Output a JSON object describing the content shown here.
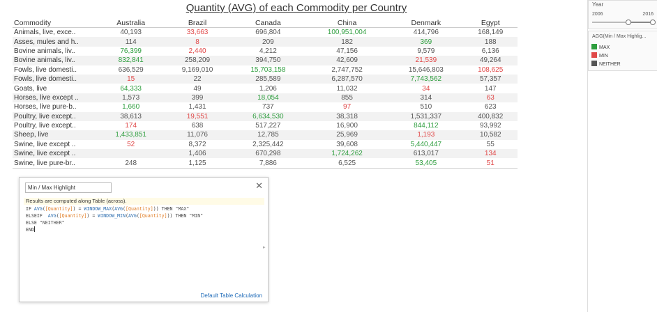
{
  "title": "Quantity (AVG) of each Commodity per Country",
  "table": {
    "row_header": "Commodity",
    "columns": [
      "Australia",
      "Brazil",
      "Canada",
      "China",
      "Denmark",
      "Egypt"
    ],
    "rows": [
      {
        "label": "Animals, live, exce..",
        "values": [
          "40,193",
          "33,663",
          "696,804",
          "100,951,004",
          "414,796",
          "168,149"
        ],
        "status": [
          "neither",
          "min",
          "neither",
          "max",
          "neither",
          "neither"
        ]
      },
      {
        "label": "Asses, mules and h..",
        "values": [
          "114",
          "8",
          "209",
          "182",
          "369",
          "188"
        ],
        "status": [
          "neither",
          "min",
          "neither",
          "neither",
          "max",
          "neither"
        ]
      },
      {
        "label": "Bovine animals, liv..",
        "values": [
          "76,399",
          "2,440",
          "4,212",
          "47,156",
          "9,579",
          "6,136"
        ],
        "status": [
          "max",
          "min",
          "neither",
          "neither",
          "neither",
          "neither"
        ]
      },
      {
        "label": "Bovine animals, liv..",
        "values": [
          "832,841",
          "258,209",
          "394,750",
          "42,609",
          "21,539",
          "49,264"
        ],
        "status": [
          "max",
          "neither",
          "neither",
          "neither",
          "min",
          "neither"
        ]
      },
      {
        "label": "Fowls, live domesti..",
        "values": [
          "636,529",
          "9,169,010",
          "15,703,158",
          "2,747,752",
          "15,646,803",
          "108,625"
        ],
        "status": [
          "neither",
          "neither",
          "max",
          "neither",
          "neither",
          "min"
        ]
      },
      {
        "label": "Fowls, live domesti..",
        "values": [
          "15",
          "22",
          "285,589",
          "6,287,570",
          "7,743,562",
          "57,357"
        ],
        "status": [
          "min",
          "neither",
          "neither",
          "neither",
          "max",
          "neither"
        ]
      },
      {
        "label": "Goats, live",
        "values": [
          "64,333",
          "49",
          "1,206",
          "11,032",
          "34",
          "147"
        ],
        "status": [
          "max",
          "neither",
          "neither",
          "neither",
          "min",
          "neither"
        ]
      },
      {
        "label": "Horses, live except ..",
        "values": [
          "1,573",
          "399",
          "18,054",
          "855",
          "314",
          "63"
        ],
        "status": [
          "neither",
          "neither",
          "max",
          "neither",
          "neither",
          "min"
        ]
      },
      {
        "label": "Horses, live pure-b..",
        "values": [
          "1,660",
          "1,431",
          "737",
          "97",
          "510",
          "623"
        ],
        "status": [
          "max",
          "neither",
          "neither",
          "min",
          "neither",
          "neither"
        ]
      },
      {
        "label": "Poultry, live except..",
        "values": [
          "38,613",
          "19,551",
          "6,634,530",
          "38,318",
          "1,531,337",
          "400,832"
        ],
        "status": [
          "neither",
          "min",
          "max",
          "neither",
          "neither",
          "neither"
        ]
      },
      {
        "label": "Poultry, live except..",
        "values": [
          "174",
          "638",
          "517,227",
          "16,900",
          "844,112",
          "93,992"
        ],
        "status": [
          "min",
          "neither",
          "neither",
          "neither",
          "max",
          "neither"
        ]
      },
      {
        "label": "Sheep, live",
        "values": [
          "1,433,851",
          "11,076",
          "12,785",
          "25,969",
          "1,193",
          "10,582"
        ],
        "status": [
          "max",
          "neither",
          "neither",
          "neither",
          "min",
          "neither"
        ]
      },
      {
        "label": "Swine, live except ..",
        "values": [
          "52",
          "8,372",
          "2,325,442",
          "39,608",
          "5,440,447",
          "55"
        ],
        "status": [
          "min",
          "neither",
          "neither",
          "neither",
          "max",
          "neither"
        ]
      },
      {
        "label": "Swine, live except ..",
        "values": [
          "",
          "1,406",
          "670,298",
          "1,724,262",
          "613,017",
          "134"
        ],
        "status": [
          "neither",
          "neither",
          "neither",
          "max",
          "neither",
          "min"
        ]
      },
      {
        "label": "Swine, live pure-br..",
        "values": [
          "248",
          "1,125",
          "7,886",
          "6,525",
          "53,405",
          "51"
        ],
        "status": [
          "neither",
          "neither",
          "neither",
          "neither",
          "max",
          "min"
        ]
      }
    ]
  },
  "filter": {
    "label": "Year",
    "min": "2006",
    "max": "2016",
    "selected_start_fraction": 0.6,
    "selected_end_fraction": 1.0
  },
  "legend": {
    "title": "AGG(Min / Max Highlig...",
    "items": [
      {
        "label": "MAX",
        "color": "#2e9e3e"
      },
      {
        "label": "MIN",
        "color": "#e04848"
      },
      {
        "label": "NEITHER",
        "color": "#555555"
      }
    ]
  },
  "calc_dialog": {
    "name": "Min / Max Highlight",
    "note": "Results are computed along Table (across).",
    "code_lines": [
      "IF AVG([Quantity]) = WINDOW_MAX(AVG([Quantity])) THEN \"MAX\"",
      "ELSEIF  AVG([Quantity]) = WINDOW_MIN(AVG([Quantity])) THEN \"MIN\"",
      "ELSE \"NEITHER\"",
      "END"
    ],
    "link": "Default Table Calculation",
    "close_icon": "close-icon"
  },
  "colors": {
    "max": "#2e9e3e",
    "min": "#e04848",
    "neither": "#555555",
    "link": "#1f6bb8"
  }
}
